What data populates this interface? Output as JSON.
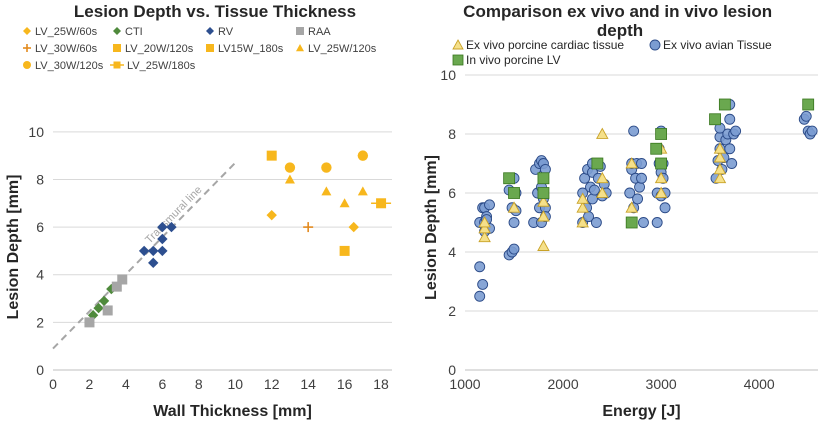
{
  "chart_data": [
    {
      "type": "scatter",
      "title": "Lesion Depth vs. Tissue Thickness",
      "xlabel": "Wall Thickness [mm]",
      "ylabel": "Lesion Depth [mm]",
      "xlim": [
        0,
        18.6
      ],
      "ylim": [
        0,
        11
      ],
      "xticks": [
        "0",
        "2",
        "4",
        "6",
        "8",
        "10",
        "12",
        "14",
        "16",
        "18"
      ],
      "yticks": [
        "0",
        "2",
        "4",
        "6",
        "8",
        "10"
      ],
      "legend_position": "top",
      "colors": {
        "orange": "#f7b71d",
        "orange_dark": "#e38a1e",
        "green": "#4f8a3c",
        "blue": "#2d4f8f",
        "gray": "#a6a6a6",
        "transmural": "#a6a6a6"
      },
      "transmural_line": {
        "label": "Transmural line",
        "x": [
          0,
          10
        ],
        "y": [
          0.9,
          8.7
        ]
      },
      "series": [
        {
          "name": "LV_25W/60s",
          "marker": "diamond",
          "color": "#f7b71d",
          "x": [
            12,
            16.5
          ],
          "y": [
            6.5,
            6
          ]
        },
        {
          "name": "CTI",
          "marker": "diamond",
          "color": "#4f8a3c",
          "x": [
            2.2,
            2.5,
            2.8,
            3.2
          ],
          "y": [
            2.3,
            2.6,
            2.9,
            3.4
          ]
        },
        {
          "name": "RV",
          "marker": "diamond",
          "color": "#2d4f8f",
          "x": [
            5,
            5.5,
            5.5,
            6,
            6,
            6,
            6.5
          ],
          "y": [
            5,
            4.5,
            5,
            5,
            5.5,
            6,
            6
          ]
        },
        {
          "name": "RAA",
          "marker": "square",
          "color": "#a6a6a6",
          "x": [
            2,
            3,
            3.5,
            3.8
          ],
          "y": [
            2,
            2.5,
            3.5,
            3.8
          ]
        },
        {
          "name": "LV_30W/60s",
          "marker": "plus",
          "color": "#e38a1e",
          "x": [
            14
          ],
          "y": [
            6
          ]
        },
        {
          "name": "LV_20W/120s",
          "marker": "square",
          "color": "#f7b71d",
          "x": [
            12
          ],
          "y": [
            9
          ]
        },
        {
          "name": "LV15W_180s",
          "marker": "square",
          "color": "#f7b71d",
          "x": [
            16
          ],
          "y": [
            5
          ]
        },
        {
          "name": "LV_25W/120s",
          "marker": "triangle",
          "color": "#f7b71d",
          "x": [
            13,
            15,
            16,
            17
          ],
          "y": [
            8,
            7.5,
            7,
            7.5
          ]
        },
        {
          "name": "LV_30W/120s",
          "marker": "circle",
          "color": "#f7b71d",
          "x": [
            13,
            15,
            17
          ],
          "y": [
            8.5,
            8.5,
            9
          ]
        },
        {
          "name": "LV_25W/180s",
          "marker": "square-line",
          "color": "#f7b71d",
          "x": [
            18
          ],
          "y": [
            7
          ]
        }
      ]
    },
    {
      "type": "scatter",
      "title": "Comparison ex vivo and in vivo lesion depth",
      "xlabel": "Energy [J]",
      "ylabel": "Lesion Depth [mm]",
      "xlim": [
        1000,
        4600
      ],
      "ylim": [
        0,
        10
      ],
      "xticks": [
        "1000",
        "2000",
        "3000",
        "4000"
      ],
      "yticks": [
        "0",
        "2",
        "4",
        "6",
        "8",
        "10"
      ],
      "legend_position": "top",
      "series": [
        {
          "name": "Ex vivo porcine cardiac tissue",
          "marker": "triangle",
          "color": "#f5e08a",
          "edge": "#c9a227",
          "x": [
            1200,
            1200,
            1200,
            1500,
            1800,
            1800,
            1800,
            2200,
            2200,
            2200,
            2400,
            2400,
            2400,
            2700,
            2700,
            3000,
            3000,
            3000,
            3600,
            3600,
            3600,
            3600
          ],
          "y": [
            4.5,
            4.8,
            5.0,
            5.5,
            4.2,
            5.2,
            5.7,
            5.0,
            5.5,
            5.8,
            6.0,
            6.5,
            8.0,
            5.5,
            7.0,
            6.0,
            6.5,
            7.5,
            6.5,
            6.8,
            7.2,
            7.5
          ]
        },
        {
          "name": "Ex vivo avian Tissue",
          "marker": "circle",
          "color": "#7b9cd1",
          "edge": "#2b4a87",
          "x": [
            1150,
            1150,
            1150,
            1180,
            1180,
            1200,
            1200,
            1200,
            1220,
            1220,
            1250,
            1250,
            1450,
            1450,
            1480,
            1480,
            1500,
            1500,
            1500,
            1520,
            1520,
            1700,
            1720,
            1740,
            1760,
            1760,
            1780,
            1780,
            1780,
            1800,
            1800,
            1800,
            1800,
            1820,
            1820,
            1820,
            2200,
            2200,
            2220,
            2240,
            2250,
            2260,
            2280,
            2300,
            2300,
            2300,
            2320,
            2340,
            2360,
            2380,
            2400,
            2420,
            2440,
            2680,
            2700,
            2700,
            2720,
            2720,
            2740,
            2750,
            2760,
            2780,
            2800,
            2800,
            2820,
            2960,
            2960,
            2980,
            2980,
            3000,
            3000,
            3000,
            3020,
            3020,
            3040,
            3040,
            3560,
            3580,
            3600,
            3600,
            3600,
            3620,
            3640,
            3660,
            3680,
            3700,
            3700,
            3700,
            3720,
            3740,
            3760,
            4460,
            4480,
            4500,
            4520,
            4540
          ],
          "y": [
            2.5,
            3.5,
            5.0,
            2.9,
            5.5,
            5.5,
            5.0,
            4.7,
            5.2,
            5.1,
            5.6,
            4.8,
            3.9,
            6.1,
            5.5,
            4.0,
            5.0,
            6.5,
            4.1,
            6.0,
            5.4,
            5.0,
            6.8,
            6.0,
            5.5,
            7.0,
            6.2,
            7.1,
            5.0,
            6.0,
            6.5,
            5.8,
            7.0,
            5.5,
            6.8,
            5.2,
            5.0,
            6.0,
            6.5,
            5.5,
            6.8,
            5.2,
            6.2,
            6.7,
            5.8,
            7.0,
            6.1,
            5.0,
            6.5,
            6.9,
            5.9,
            6.3,
            6.0,
            6.0,
            6.8,
            7.0,
            5.5,
            8.1,
            6.5,
            7.0,
            5.8,
            6.2,
            7.0,
            6.5,
            5.0,
            5.0,
            6.0,
            7.0,
            7.5,
            5.9,
            6.7,
            8.1,
            6.5,
            7.0,
            5.5,
            6.0,
            6.5,
            7.1,
            7.5,
            7.9,
            8.2,
            6.8,
            7.2,
            7.8,
            8.0,
            9.0,
            7.5,
            8.5,
            7.0,
            8.0,
            8.1,
            8.5,
            8.6,
            8.1,
            8.0,
            8.1
          ]
        },
        {
          "name": "In vivo porcine LV",
          "marker": "square",
          "color": "#6aa84f",
          "edge": "#38761d",
          "x": [
            1450,
            1500,
            1800,
            1800,
            2350,
            2700,
            2950,
            3000,
            3000,
            3550,
            3650,
            4500
          ],
          "y": [
            6.5,
            6.0,
            6.0,
            6.5,
            7.0,
            5.0,
            7.5,
            7.0,
            8.0,
            8.5,
            9.0,
            9.0
          ]
        }
      ]
    }
  ]
}
